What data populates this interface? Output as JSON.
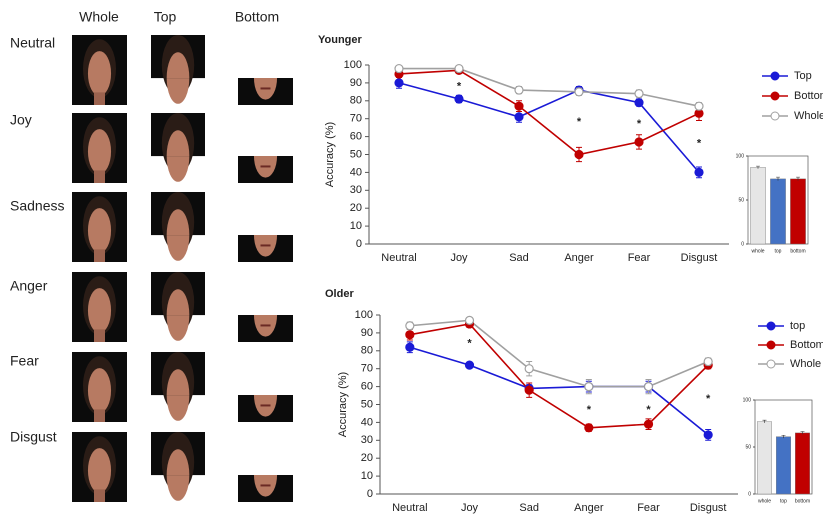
{
  "panel": {
    "columns": [
      "Whole",
      "Top",
      "Bottom"
    ],
    "rows": [
      "Neutral",
      "Joy",
      "Sadness",
      "Anger",
      "Fear",
      "Disgust"
    ]
  },
  "chart_data": [
    {
      "type": "line",
      "title": "Younger",
      "y_label": "Accuracy (%)",
      "categories": [
        "Neutral",
        "Joy",
        "Sad",
        "Anger",
        "Fear",
        "Disgust"
      ],
      "ylim": [
        0,
        100
      ],
      "yticks": [
        0,
        10,
        20,
        30,
        40,
        50,
        60,
        70,
        80,
        90,
        100
      ],
      "legend": "right",
      "series": [
        {
          "name": "Top",
          "color": "#1a1ad6",
          "values": [
            90,
            81,
            71,
            86,
            79,
            40
          ],
          "errors": [
            3,
            2,
            3,
            2,
            2,
            3
          ]
        },
        {
          "name": "Bottom",
          "color": "#c00000",
          "values": [
            95,
            97,
            77,
            50,
            57,
            73
          ],
          "errors": [
            2,
            1,
            3,
            4,
            4,
            4
          ]
        },
        {
          "name": "Whole",
          "color": "#a0a0a0",
          "marker_fill": "#ffffff",
          "values": [
            98,
            98,
            86,
            85,
            84,
            77
          ],
          "errors": [
            1,
            1,
            2,
            2,
            2,
            2
          ]
        }
      ],
      "annotations": [
        {
          "text": "*",
          "x": "Joy",
          "y": 88
        },
        {
          "text": "*",
          "x": "Anger",
          "y": 68
        },
        {
          "text": "*",
          "x": "Fear",
          "y": 67
        },
        {
          "text": "*",
          "x": "Disgust",
          "y": 56
        }
      ]
    },
    {
      "type": "bar",
      "categories": [
        "whole",
        "top",
        "bottom"
      ],
      "values": [
        87,
        74,
        74
      ],
      "errors": [
        1.5,
        2,
        2
      ],
      "colors": [
        "#e6e6e6",
        "#4472c4",
        "#c00000"
      ],
      "ylim": [
        0,
        100
      ],
      "yticks": [
        0,
        50,
        100
      ]
    },
    {
      "type": "line",
      "title": "Older",
      "y_label": "Accuracy (%)",
      "categories": [
        "Neutral",
        "Joy",
        "Sad",
        "Anger",
        "Fear",
        "Disgust"
      ],
      "ylim": [
        0,
        100
      ],
      "yticks": [
        0,
        10,
        20,
        30,
        40,
        50,
        60,
        70,
        80,
        90,
        100
      ],
      "legend": "right",
      "series": [
        {
          "name": "top",
          "color": "#1a1ad6",
          "values": [
            82,
            72,
            59,
            60,
            60,
            33
          ],
          "errors": [
            3,
            1,
            2,
            3,
            3,
            3
          ]
        },
        {
          "name": "Bottom",
          "color": "#c00000",
          "values": [
            89,
            95,
            58,
            37,
            39,
            72
          ],
          "errors": [
            3,
            2,
            4,
            2,
            3,
            2
          ]
        },
        {
          "name": "Whole",
          "color": "#a0a0a0",
          "marker_fill": "#ffffff",
          "values": [
            94,
            97,
            70,
            60,
            60,
            74
          ],
          "errors": [
            2,
            1,
            4,
            4,
            4,
            2
          ]
        }
      ],
      "annotations": [
        {
          "text": "*",
          "x": "Joy",
          "y": 84
        },
        {
          "text": "*",
          "x": "Anger",
          "y": 47
        },
        {
          "text": "*",
          "x": "Fear",
          "y": 47
        },
        {
          "text": "*",
          "x": "Disgust",
          "y": 53
        }
      ]
    },
    {
      "type": "bar",
      "categories": [
        "whole",
        "top",
        "bottom"
      ],
      "values": [
        77,
        61,
        65
      ],
      "errors": [
        1.5,
        1.5,
        1.5
      ],
      "colors": [
        "#e6e6e6",
        "#4472c4",
        "#c00000"
      ],
      "ylim": [
        0,
        100
      ],
      "yticks": [
        0,
        50,
        100
      ]
    }
  ]
}
